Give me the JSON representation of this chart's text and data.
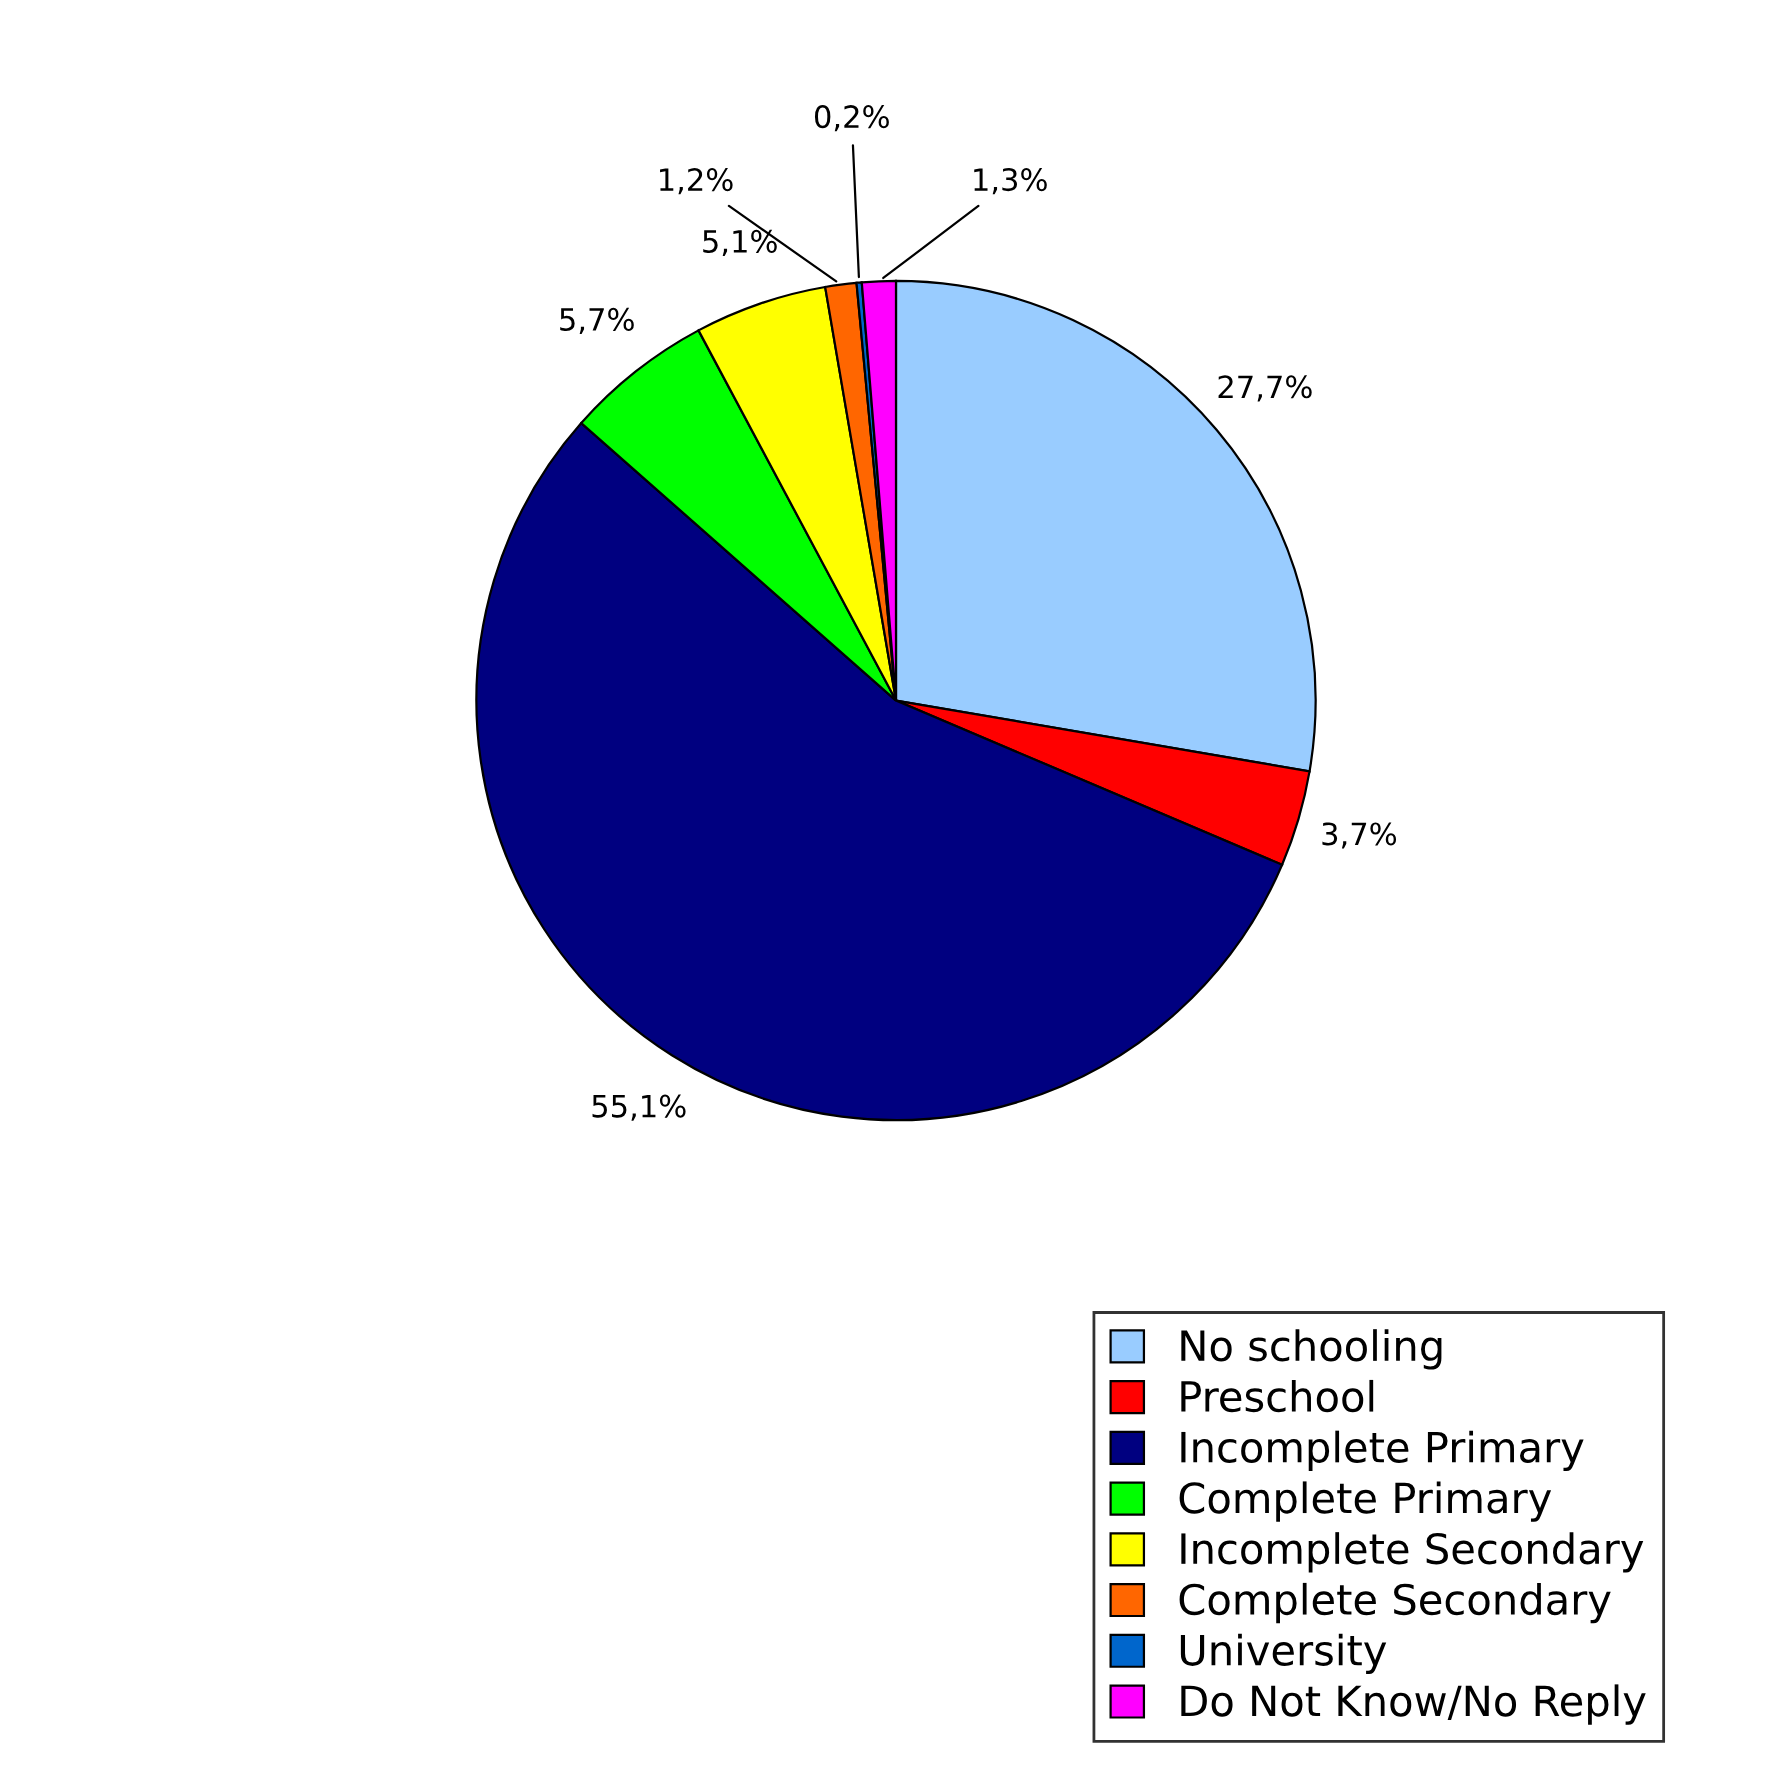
{
  "chart_data": {
    "type": "pie",
    "categories": [
      "No schooling",
      "Preschool",
      "Incomplete Primary",
      "Complete Primary",
      "Incomplete Secondary",
      "Complete Secondary",
      "University",
      "Do Not Know/No Reply"
    ],
    "values": [
      27.7,
      3.7,
      55.1,
      5.7,
      5.1,
      1.2,
      0.2,
      1.3
    ],
    "value_labels": [
      "27,7%",
      "3,7%",
      "55,1%",
      "5,7%",
      "5,1%",
      "1,2%",
      "0,2%",
      "1,3%"
    ],
    "colors": [
      "#99ccff",
      "#ff0000",
      "#000080",
      "#00ff00",
      "#ffff00",
      "#ff6600",
      "#0066cc",
      "#ff00ff"
    ],
    "legend": "bottom right"
  }
}
